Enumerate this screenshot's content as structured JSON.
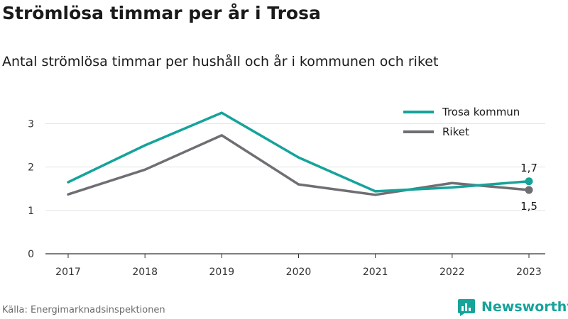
{
  "title": "Strömlösa timmar per år i Trosa",
  "subtitle": "Antal strömlösa timmar per hushåll och år i kommunen och riket",
  "source": "Källa: Energimarknadsinspektionen",
  "brand": {
    "name": "Newsworthy",
    "color": "#15a39a",
    "icon": "bar-chart-logo-icon"
  },
  "chart_data": {
    "type": "line",
    "categories": [
      "2017",
      "2018",
      "2019",
      "2020",
      "2021",
      "2022",
      "2023"
    ],
    "series": [
      {
        "name": "Trosa kommun",
        "color": "#15a39a",
        "values": [
          1.65,
          2.5,
          3.25,
          2.22,
          1.44,
          1.53,
          1.67
        ]
      },
      {
        "name": "Riket",
        "color": "#6e6e73",
        "values": [
          1.37,
          1.94,
          2.73,
          1.6,
          1.36,
          1.63,
          1.47
        ]
      }
    ],
    "end_labels": [
      "1,7",
      "1,5"
    ],
    "yticks": [
      "0",
      "1",
      "2",
      "3"
    ],
    "ylim": [
      0,
      3.5
    ],
    "grid": true,
    "legend_position": "top-right"
  }
}
